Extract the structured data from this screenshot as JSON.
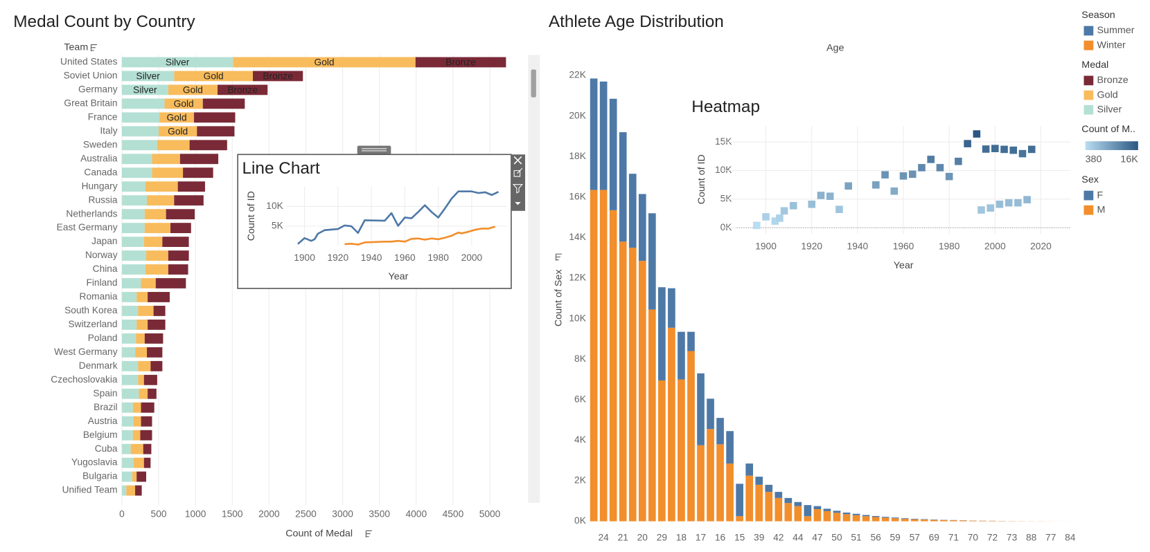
{
  "chart_data": [
    {
      "type": "bar",
      "orientation": "horizontal",
      "stacked": true,
      "title": "Medal Count by Country",
      "y_label": "Team",
      "x_label": "Count of Medal",
      "legend_title": "Medal",
      "categories": [
        "United States",
        "Soviet Union",
        "Germany",
        "Great Britain",
        "France",
        "Italy",
        "Sweden",
        "Australia",
        "Canada",
        "Hungary",
        "Russia",
        "Netherlands",
        "East Germany",
        "Japan",
        "Norway",
        "China",
        "Finland",
        "Romania",
        "South Korea",
        "Switzerland",
        "Poland",
        "West Germany",
        "Denmark",
        "Czechoslovakia",
        "Spain",
        "Brazil",
        "Austria",
        "Belgium",
        "Cuba",
        "Yugoslavia",
        "Bulgaria",
        "Unified Team"
      ],
      "series": [
        {
          "name": "Silver",
          "color": "#b4e0d4",
          "values": [
            1510,
            710,
            630,
            580,
            510,
            500,
            480,
            410,
            410,
            320,
            340,
            310,
            310,
            300,
            330,
            320,
            260,
            200,
            220,
            200,
            190,
            180,
            220,
            220,
            230,
            150,
            160,
            150,
            120,
            160,
            140,
            60
          ]
        },
        {
          "name": "Gold",
          "color": "#f8bc5d",
          "values": [
            2480,
            1070,
            670,
            520,
            470,
            520,
            440,
            380,
            420,
            440,
            370,
            290,
            350,
            250,
            300,
            310,
            200,
            150,
            210,
            150,
            120,
            160,
            170,
            80,
            120,
            110,
            100,
            100,
            170,
            140,
            60,
            120
          ]
        },
        {
          "name": "Bronze",
          "color": "#7a2a37",
          "values": [
            1230,
            680,
            680,
            570,
            560,
            510,
            510,
            520,
            410,
            370,
            400,
            390,
            280,
            360,
            280,
            270,
            410,
            300,
            160,
            240,
            250,
            210,
            160,
            180,
            120,
            180,
            150,
            160,
            110,
            90,
            130,
            90
          ]
        }
      ],
      "xlim": [
        0,
        5500
      ],
      "xticks": [
        0,
        500,
        1000,
        1500,
        2000,
        2500,
        3000,
        3500,
        4000,
        4500,
        5000
      ],
      "grid": true
    },
    {
      "type": "line",
      "title": "Line Chart",
      "x_label": "Year",
      "y_label": "Count of ID",
      "legend_title": "Season",
      "series": [
        {
          "name": "Summer",
          "color": "#4e79a7",
          "x": [
            1896,
            1900,
            1904,
            1906,
            1908,
            1912,
            1920,
            1924,
            1928,
            1932,
            1936,
            1948,
            1952,
            1956,
            1960,
            1964,
            1968,
            1972,
            1976,
            1980,
            1984,
            1988,
            1992,
            1996,
            2000,
            2004,
            2008,
            2012,
            2016
          ],
          "values": [
            500,
            2000,
            1300,
            1700,
            3100,
            4000,
            4300,
            5200,
            5000,
            3300,
            6500,
            6400,
            8300,
            5100,
            7200,
            7000,
            8600,
            10300,
            8600,
            7200,
            9500,
            12000,
            13800,
            13800,
            13800,
            13400,
            13600,
            12900,
            13700
          ]
        },
        {
          "name": "Winter",
          "color": "#f28e2b",
          "x": [
            1924,
            1928,
            1932,
            1936,
            1948,
            1952,
            1956,
            1960,
            1964,
            1968,
            1972,
            1976,
            1980,
            1984,
            1988,
            1992,
            1994,
            1998,
            2002,
            2006,
            2010,
            2014
          ],
          "values": [
            460,
            580,
            350,
            900,
            1100,
            1100,
            1300,
            1100,
            1800,
            1900,
            1600,
            1900,
            1700,
            2100,
            2600,
            3400,
            3200,
            3600,
            4100,
            4400,
            4400,
            4900
          ]
        }
      ],
      "xlim": [
        1889,
        2021
      ],
      "xticks": [
        1900,
        1920,
        1940,
        1960,
        1980,
        2000
      ],
      "ylim": [
        0,
        15000
      ],
      "yticks": [
        {
          "value": 5000,
          "label": "5K"
        },
        {
          "value": 10000,
          "label": "10K"
        }
      ],
      "grid": true
    },
    {
      "type": "heatmap",
      "title": "Heatmap",
      "x_label": "Year",
      "y_label": "Count of ID",
      "color_legend_title": "Count of M..",
      "x": [
        1896,
        1900,
        1904,
        1906,
        1908,
        1912,
        1920,
        1924,
        1928,
        1932,
        1936,
        1948,
        1952,
        1956,
        1960,
        1964,
        1968,
        1972,
        1976,
        1980,
        1984,
        1988,
        1992,
        1996,
        2000,
        2004,
        2008,
        2012,
        2016,
        1994,
        1998,
        2002,
        2006,
        2010,
        2014
      ],
      "values": [
        400,
        1900,
        1150,
        1670,
        2950,
        3850,
        4100,
        5650,
        5500,
        3200,
        7300,
        7480,
        9250,
        6400,
        9050,
        9350,
        10500,
        11950,
        10500,
        8950,
        11600,
        14700,
        16400,
        13750,
        13850,
        13700,
        13550,
        12950,
        13700,
        3100,
        3450,
        4100,
        4350,
        4350,
        4900
      ],
      "colors": [
        "#b9ddf1",
        "#2a5783"
      ],
      "colorlim": [
        380,
        16400
      ],
      "color_ticks": [
        380,
        {
          "value": 16400,
          "label": "16K"
        }
      ],
      "xlim": [
        1881,
        2033
      ],
      "xticks": [
        1900,
        1920,
        1940,
        1960,
        1980,
        2000,
        2020
      ],
      "ylim": [
        -1150,
        17800
      ],
      "yticks": [
        {
          "value": 0,
          "label": "0K"
        },
        {
          "value": 5000,
          "label": "5K"
        },
        {
          "value": 10000,
          "label": "10K"
        },
        {
          "value": 15000,
          "label": "15K"
        }
      ],
      "grid": true
    },
    {
      "type": "bar",
      "stacked": true,
      "title": "Athlete Age Distribution",
      "x_label": "Age",
      "y_label": "Count of Sex",
      "legend_title": "Sex",
      "categories": [
        null,
        "24",
        null,
        "21",
        null,
        "20",
        null,
        "29",
        null,
        "18",
        null,
        "17",
        null,
        "16",
        null,
        "15",
        null,
        "39",
        null,
        "42",
        null,
        "44",
        null,
        "47",
        null,
        "50",
        null,
        "51",
        null,
        "56",
        null,
        "59",
        null,
        "57",
        null,
        "69",
        null,
        "71",
        null,
        "70",
        null,
        "72",
        null,
        "73",
        null,
        "88",
        null,
        "77",
        null,
        "84"
      ],
      "series": [
        {
          "name": "F",
          "color": "#4e79a7",
          "values": [
            5500,
            5350,
            5500,
            5400,
            3650,
            3300,
            4750,
            4600,
            1950,
            2350,
            950,
            3550,
            1500,
            1300,
            1600,
            1600,
            600,
            400,
            350,
            300,
            250,
            200,
            550,
            150,
            120,
            100,
            80,
            70,
            60,
            50,
            40,
            35,
            30,
            25,
            20,
            15,
            12,
            10,
            8,
            6,
            5,
            4,
            3,
            2,
            1,
            1,
            1,
            0,
            0,
            0
          ]
        },
        {
          "name": "M",
          "color": "#f28e2b",
          "values": [
            16350,
            16350,
            15350,
            13800,
            13500,
            12850,
            10450,
            6950,
            9550,
            7000,
            8400,
            3750,
            4550,
            3800,
            2850,
            250,
            2250,
            1800,
            1450,
            1150,
            900,
            750,
            250,
            600,
            500,
            420,
            350,
            300,
            250,
            210,
            180,
            150,
            120,
            100,
            85,
            70,
            60,
            50,
            40,
            30,
            25,
            20,
            15,
            10,
            8,
            6,
            5,
            3,
            2,
            1
          ]
        }
      ],
      "ylim": [
        -360,
        22400
      ],
      "yticks": [
        {
          "value": 0,
          "label": "0K"
        },
        {
          "value": 2000,
          "label": "2K"
        },
        {
          "value": 4000,
          "label": "4K"
        },
        {
          "value": 6000,
          "label": "6K"
        },
        {
          "value": 8000,
          "label": "8K"
        },
        {
          "value": 10000,
          "label": "10K"
        },
        {
          "value": 12000,
          "label": "12K"
        },
        {
          "value": 14000,
          "label": "14K"
        },
        {
          "value": 16000,
          "label": "16K"
        },
        {
          "value": 18000,
          "label": "18K"
        },
        {
          "value": 20000,
          "label": "20K"
        },
        {
          "value": 22000,
          "label": "22K"
        }
      ],
      "grid": false
    }
  ]
}
